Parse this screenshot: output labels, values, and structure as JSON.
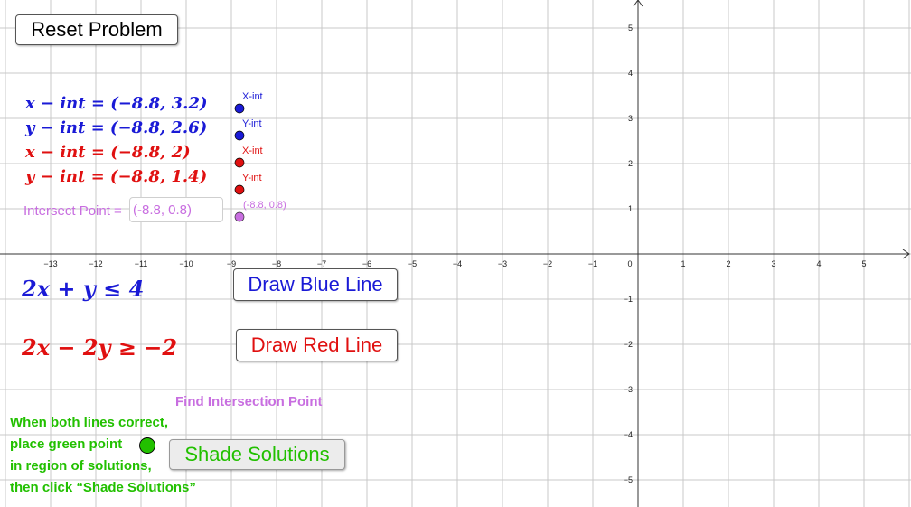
{
  "buttons": {
    "reset": "Reset Problem",
    "draw_blue": "Draw Blue Line",
    "draw_red": "Draw Red Line",
    "shade": "Shade Solutions"
  },
  "intercept_labels": {
    "blue_x": "x − int = (−8.8, 3.2)",
    "blue_y": "y − int = (−8.8, 2.6)",
    "red_x": "x − int = (−8.8, 2)",
    "red_y": "y − int = (−8.8, 1.4)"
  },
  "intersect": {
    "label": "Intersect Point =",
    "value": "(-8.8, 0.8)",
    "point_label": "(-8.8, 0.8)"
  },
  "point_labels": {
    "blue_x": "X-int",
    "blue_y": "Y-int",
    "red_x": "X-int",
    "red_y": "Y-int"
  },
  "inequalities": {
    "blue": "2x + y ≤ 4",
    "red": "2x − 2y ≥ −2"
  },
  "find_intersection": "Find Intersection Point",
  "instructions": {
    "line1": "When both lines correct,",
    "line2": "place green point",
    "line3": "in region of solutions,",
    "line4": "then click “Shade Solutions”"
  },
  "axes": {
    "x_ticks": [
      "−13",
      "−12",
      "−11",
      "−10",
      "−9",
      "−8",
      "−7",
      "−6",
      "−5",
      "−4",
      "−3",
      "−2",
      "−1",
      "0",
      "1",
      "2",
      "3",
      "4",
      "5"
    ],
    "x_values": [
      -13,
      -12,
      -11,
      -10,
      -9,
      -8,
      -7,
      -6,
      -5,
      -4,
      -3,
      -2,
      -1,
      0,
      1,
      2,
      3,
      4,
      5
    ],
    "y_ticks": [
      "5",
      "4",
      "3",
      "2",
      "1",
      "−1",
      "−2",
      "−3",
      "−4",
      "−5"
    ],
    "y_values": [
      5,
      4,
      3,
      2,
      1,
      -1,
      -2,
      -3,
      -4,
      -5
    ]
  },
  "colors": {
    "blue": "#1a1ad6",
    "red": "#e01010",
    "purple": "#c86ee0",
    "green": "#22c000",
    "grid": "#c8c8c8"
  }
}
